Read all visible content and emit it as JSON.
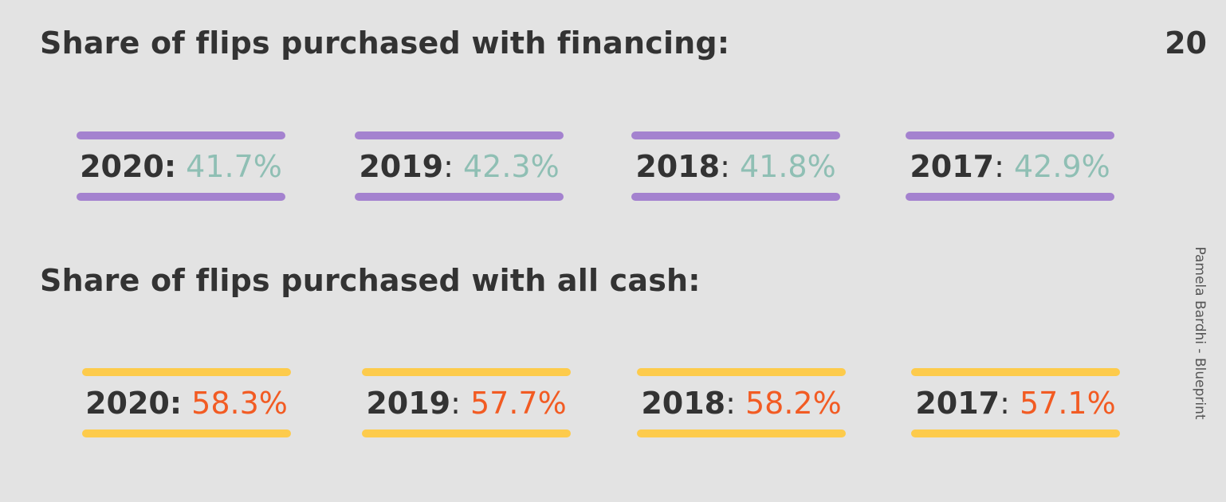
{
  "page_number": "20",
  "credit": "Pamela Bardhi - Blueprint",
  "financing": {
    "heading": "Share of flips purchased with financing:",
    "accent_color": "#a482cf",
    "value_color": "#8fbfb4",
    "items": [
      {
        "year": "2020",
        "colon": ":",
        "value": " 41.7%"
      },
      {
        "year": "2019",
        "colon": ":",
        "value": " 42.3%"
      },
      {
        "year": "2018",
        "colon": ":",
        "value": " 41.8%"
      },
      {
        "year": "2017",
        "colon": ":",
        "value": " 42.9%"
      }
    ]
  },
  "cash": {
    "heading": "Share of flips purchased with all cash:",
    "accent_color": "#fdcb4c",
    "value_color": "#f25b23",
    "items": [
      {
        "year": "2020",
        "colon": ":",
        "value": " 58.3%"
      },
      {
        "year": "2019",
        "colon": ":",
        "value": " 57.7%"
      },
      {
        "year": "2018",
        "colon": ":",
        "value": " 58.2%"
      },
      {
        "year": "2017",
        "colon": ":",
        "value": " 57.1%"
      }
    ]
  }
}
